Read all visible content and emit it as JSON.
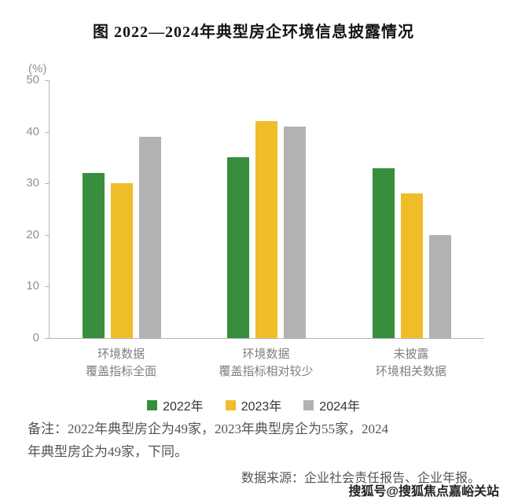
{
  "page": {
    "title": "图  2022—2024年典型房企环境信息披露情况",
    "note_line1": "备注：2022年典型房企为49家，2023年典型房企为55家，2024",
    "note_line2": "年典型房企为49家，下同。",
    "source": "数据来源：企业社会责任报告、企业年报。",
    "watermark": "搜狐号@搜狐焦点嘉峪关站"
  },
  "chart_data": {
    "type": "bar",
    "title": "图 2022—2024年典型房企环境信息披露情况",
    "unit_label": "(%)",
    "categories": [
      [
        "环境数据",
        "覆盖指标全面"
      ],
      [
        "环境数据",
        "覆盖指标相对较少"
      ],
      [
        "未披露",
        "环境相关数据"
      ]
    ],
    "series": [
      {
        "name": "2022年",
        "color": "#388e3c",
        "values": [
          32,
          35,
          33
        ]
      },
      {
        "name": "2023年",
        "color": "#f0bd2a",
        "values": [
          30,
          42,
          28
        ]
      },
      {
        "name": "2024年",
        "color": "#b2b2b2",
        "values": [
          39,
          41,
          20
        ]
      }
    ],
    "ylim": [
      0,
      50
    ],
    "yticks": [
      0,
      10,
      20,
      30,
      40,
      50
    ],
    "grid": false,
    "legend_position": "bottom"
  }
}
